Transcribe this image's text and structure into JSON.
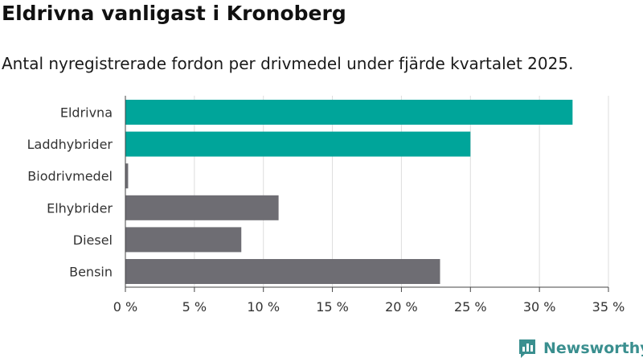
{
  "header": {
    "title": "Eldrivna vanligast i Kronoberg",
    "subtitle": "Antal nyregistrerade fordon per drivmedel under fjärde kvartalet 2025."
  },
  "chart_data": {
    "type": "bar",
    "orientation": "horizontal",
    "title": "Eldrivna vanligast i Kronoberg",
    "subtitle": "Antal nyregistrerade fordon per drivmedel under fjärde kvartalet 2025.",
    "xlabel": "",
    "ylabel": "",
    "categories": [
      "Eldrivna",
      "Laddhybrider",
      "Biodrivmedel",
      "Elhybrider",
      "Diesel",
      "Bensin"
    ],
    "values": [
      32.4,
      25.0,
      0.2,
      11.1,
      8.4,
      22.8
    ],
    "colors": [
      "#00a59a",
      "#00a59a",
      "#6e6d73",
      "#6e6d73",
      "#6e6d73",
      "#6e6d73"
    ],
    "xlim": [
      0,
      35
    ],
    "xticks": [
      0,
      5,
      10,
      15,
      20,
      25,
      30,
      35
    ],
    "xtick_labels": [
      "0 %",
      "5 %",
      "10 %",
      "15 %",
      "20 %",
      "25 %",
      "30 %",
      "35 %"
    ],
    "grid": true,
    "legend": "none"
  },
  "brand": {
    "name": "Newsworthy",
    "icon": "newsworthy-logo-icon",
    "color": "#3a8f8f"
  }
}
